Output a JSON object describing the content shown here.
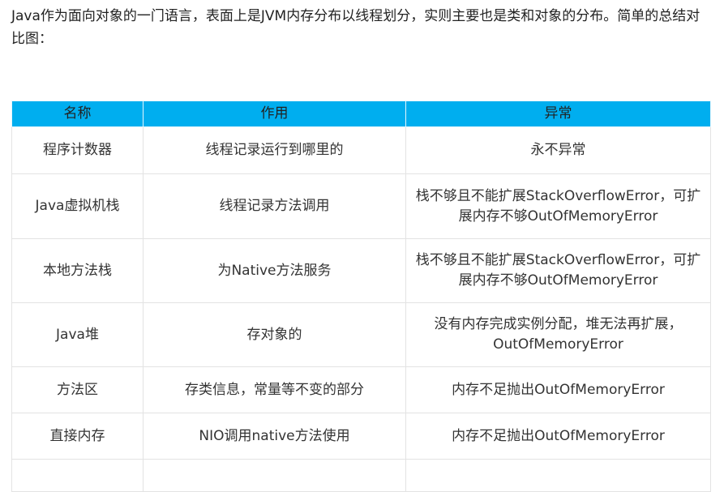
{
  "intro": "Java作为面向对象的一门语言，表面上是JVM内存分布以线程划分，实则主要也是类和对象的分布。简单的总结对比图：",
  "table": {
    "headers": [
      "名称",
      "作用",
      "异常"
    ],
    "header_color": "#00aeef",
    "rows": [
      [
        "程序计数器",
        "线程记录运行到哪里的",
        "永不异常"
      ],
      [
        "Java虚拟机栈",
        "线程记录方法调用",
        "栈不够且不能扩展StackOverflowError，可扩展内存不够OutOfMemoryError"
      ],
      [
        "本地方法栈",
        "为Native方法服务",
        "栈不够且不能扩展StackOverflowError，可扩展内存不够OutOfMemoryError"
      ],
      [
        "Java堆",
        "存对象的",
        "没有内存完成实例分配，堆无法再扩展，OutOfMemoryError"
      ],
      [
        "方法区",
        "存类信息，常量等不变的部分",
        "内存不足抛出OutOfMemoryError"
      ],
      [
        "直接内存",
        "NIO调用native方法使用",
        "内存不足抛出OutOfMemoryError"
      ]
    ]
  }
}
